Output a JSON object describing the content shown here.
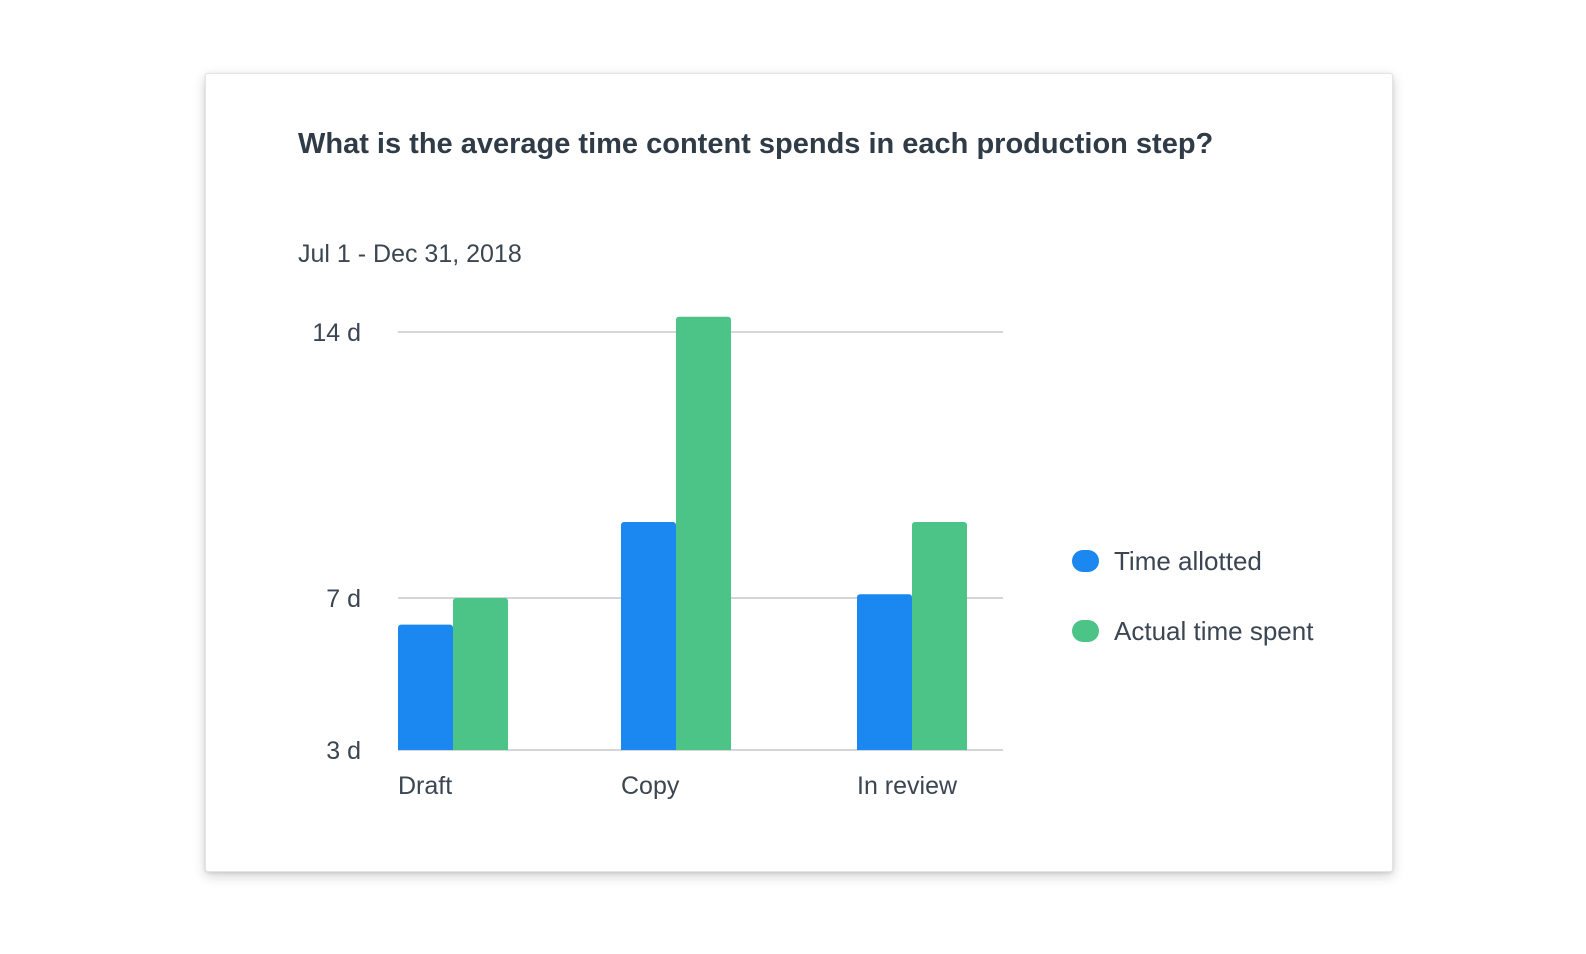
{
  "chart_data": {
    "type": "bar",
    "title": "What is the average time content spends in each production step?",
    "subtitle": "Jul 1 - Dec 31, 2018",
    "categories": [
      "Draft",
      "Copy",
      "In review"
    ],
    "series": [
      {
        "name": "Time allotted",
        "color": "#1a88f0",
        "values": [
          6.3,
          9.0,
          7.1
        ]
      },
      {
        "name": "Actual time spent",
        "color": "#4cc487",
        "values": [
          7.0,
          14.4,
          9.0
        ]
      }
    ],
    "y_ticks": [
      {
        "label": "14 d",
        "value": 14
      },
      {
        "label": "7 d",
        "value": 7
      },
      {
        "label": "3 d",
        "value": 3
      }
    ],
    "ylim": [
      3,
      14
    ],
    "grid": true,
    "legend": "right"
  }
}
